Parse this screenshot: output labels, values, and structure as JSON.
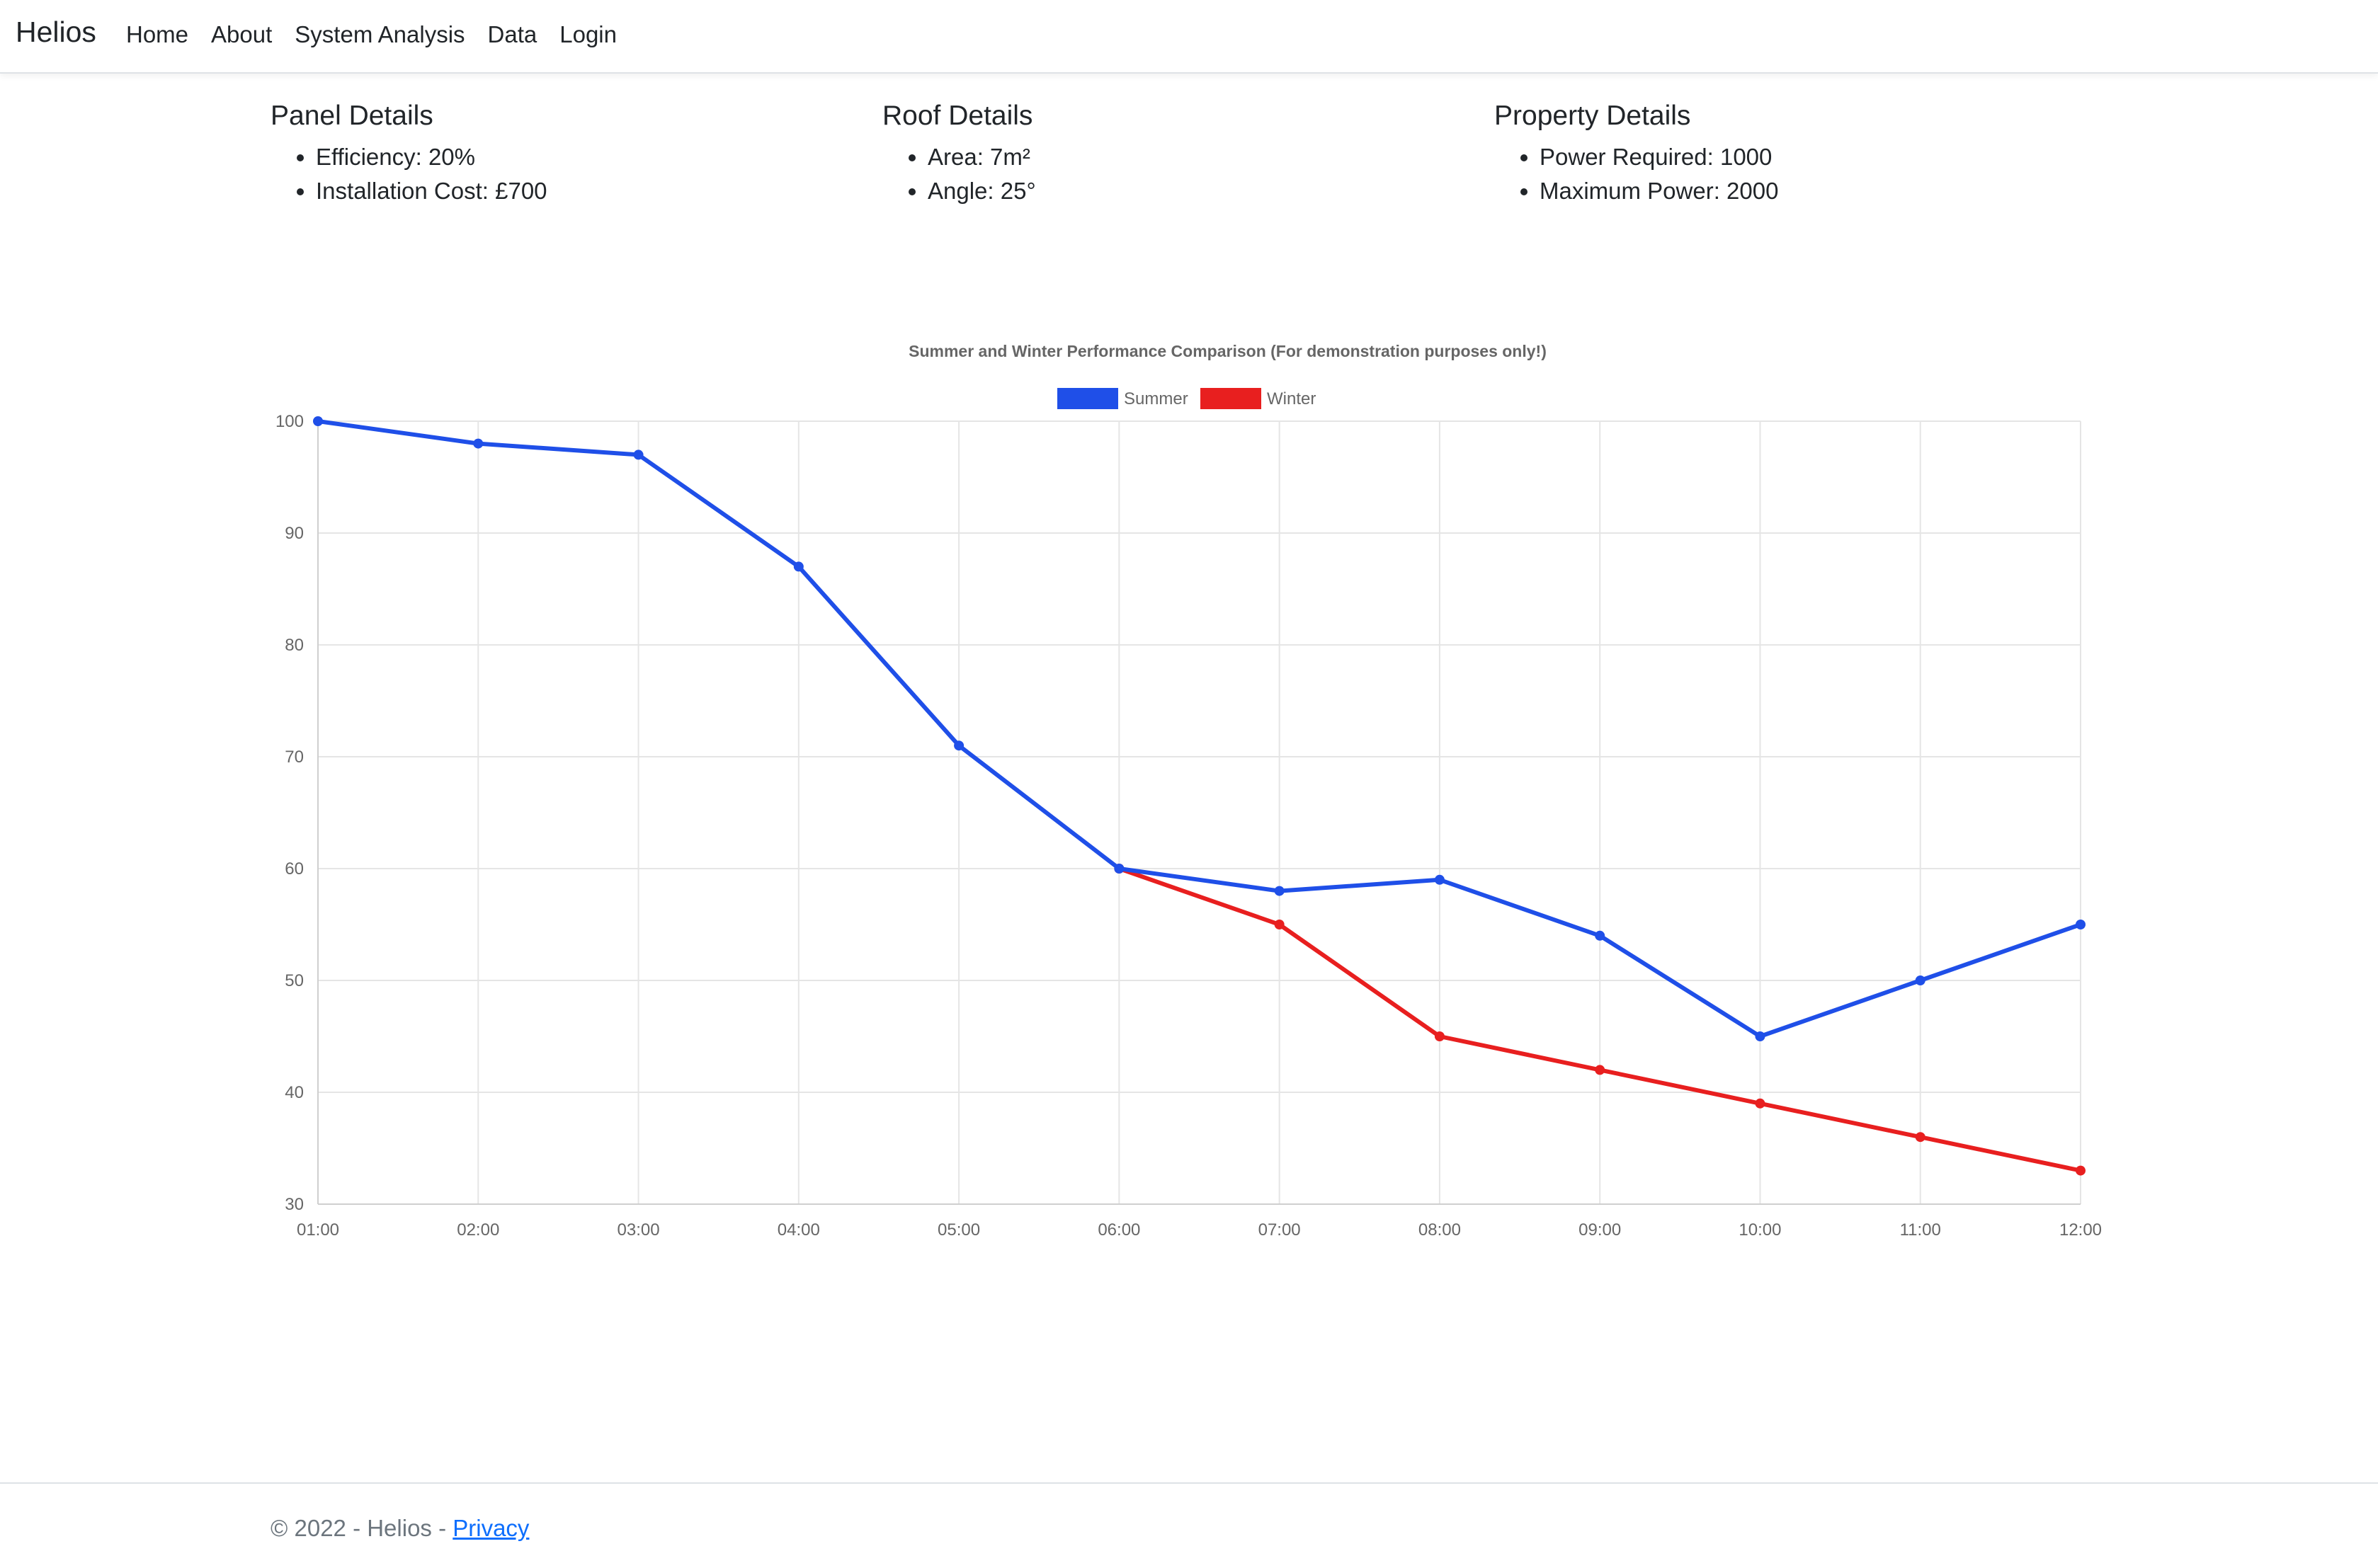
{
  "nav": {
    "brand": "Helios",
    "items": [
      "Home",
      "About",
      "System Analysis",
      "Data",
      "Login"
    ]
  },
  "panel": {
    "title": "Panel Details",
    "items": [
      "Efficiency: 20%",
      "Installation Cost: £700"
    ]
  },
  "roof": {
    "title": "Roof Details",
    "items": [
      "Area: 7m²",
      "Angle: 25°"
    ]
  },
  "property": {
    "title": "Property Details",
    "items": [
      "Power Required: 1000",
      "Maximum Power: 2000"
    ]
  },
  "chart_data": {
    "type": "line",
    "title": "Summer and Winter Performance Comparison (For demonstration purposes only!)",
    "categories": [
      "01:00",
      "02:00",
      "03:00",
      "04:00",
      "05:00",
      "06:00",
      "07:00",
      "08:00",
      "09:00",
      "10:00",
      "11:00",
      "12:00"
    ],
    "series": [
      {
        "name": "Summer",
        "color": "#1f4fe8",
        "values": [
          100,
          98,
          97,
          87,
          71,
          60,
          58,
          59,
          54,
          45,
          50,
          55
        ]
      },
      {
        "name": "Winter",
        "color": "#e81f1f",
        "values": [
          null,
          null,
          null,
          null,
          null,
          60,
          55,
          45,
          42,
          39,
          36,
          33
        ]
      }
    ],
    "ylim": [
      30,
      100
    ],
    "yticks": [
      30,
      40,
      50,
      60,
      70,
      80,
      90,
      100
    ],
    "grid": true,
    "legend": "top-center"
  },
  "footer": {
    "copyright": "© 2022 - Helios - ",
    "privacy": "Privacy"
  }
}
